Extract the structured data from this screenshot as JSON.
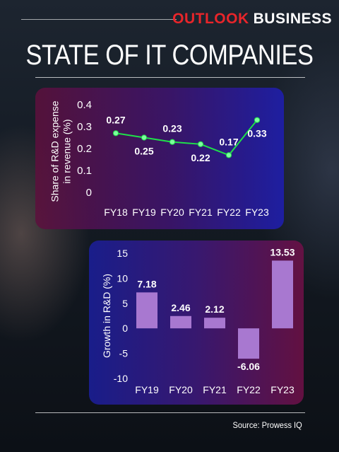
{
  "brand": {
    "part1": "OUTLOOK",
    "part2": "BUSINESS"
  },
  "title": "STATE OF IT COMPANIES",
  "source": "Source: Prowess IQ",
  "colors": {
    "line": "#1fe04a",
    "marker": "#7dff9e",
    "bar": "#a878d0",
    "text": "#ffffff"
  },
  "chart_data": [
    {
      "type": "line",
      "categories": [
        "FY18",
        "FY19",
        "FY20",
        "FY21",
        "FY22",
        "FY23"
      ],
      "values": [
        0.27,
        0.25,
        0.23,
        0.22,
        0.17,
        0.33
      ],
      "data_labels": [
        "0.27",
        "0.25",
        "0.23",
        "0.22",
        "0.17",
        "0.33"
      ],
      "ylabel": "Share of R&D expense in revenue (%)",
      "ylabel_lines": [
        "Share of R&D expense",
        "in revenue (%)"
      ],
      "ylim": [
        0,
        0.4
      ],
      "yticks": [
        0,
        0.1,
        0.2,
        0.3,
        0.4
      ],
      "ytick_labels": [
        "0",
        "0.1",
        "0.2",
        "0.3",
        "0.4"
      ],
      "grid": false,
      "legend": "none"
    },
    {
      "type": "bar",
      "categories": [
        "FY19",
        "FY20",
        "FY21",
        "FY22",
        "FY23"
      ],
      "values": [
        7.18,
        2.46,
        2.12,
        -6.06,
        13.53
      ],
      "data_labels": [
        "7.18",
        "2.46",
        "2.12",
        "-6.06",
        "13.53"
      ],
      "ylabel": "Growth in R&D (%)",
      "ylim": [
        -10,
        15
      ],
      "yticks": [
        -10,
        -5,
        0,
        5,
        10,
        15
      ],
      "ytick_labels": [
        "-10",
        "-5",
        "0",
        "5",
        "10",
        "15"
      ],
      "grid": false,
      "legend": "none"
    }
  ]
}
